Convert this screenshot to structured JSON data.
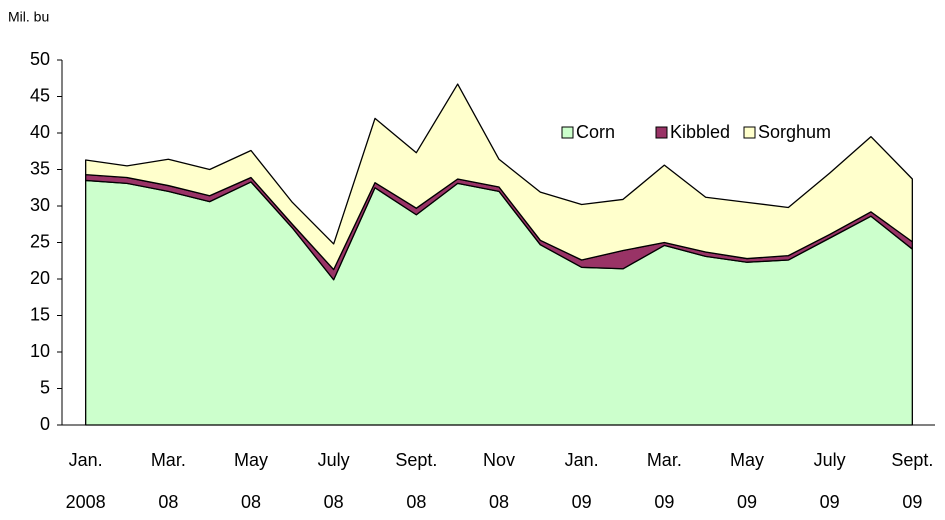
{
  "chart_data": {
    "type": "stacked_area",
    "y_axis_label": "Mil. bu",
    "categories": [
      "Jan.",
      null,
      "Mar.",
      null,
      "May",
      null,
      "July",
      null,
      "Sept.",
      null,
      "Nov",
      null,
      "Jan.",
      null,
      "Mar.",
      null,
      "May",
      null,
      "July",
      null,
      "Sept."
    ],
    "category_years": [
      "2008",
      null,
      "08",
      null,
      "08",
      null,
      "08",
      null,
      "08",
      null,
      "08",
      null,
      "09",
      null,
      "09",
      null,
      "09",
      null,
      "09",
      null,
      "09"
    ],
    "series": [
      {
        "name": "Corn",
        "color": "#ccffcc",
        "values": [
          33.5,
          33.1,
          32.0,
          30.6,
          33.3,
          27.0,
          19.9,
          32.5,
          28.8,
          33.1,
          32.0,
          24.7,
          21.6,
          21.4,
          24.6,
          23.1,
          22.3,
          22.6,
          25.6,
          28.6,
          24.1
        ]
      },
      {
        "name": "Kibbled",
        "color": "#993366",
        "values": [
          0.8,
          0.8,
          0.8,
          0.8,
          0.6,
          0.5,
          1.4,
          0.7,
          0.9,
          0.6,
          0.6,
          0.6,
          1.0,
          2.5,
          0.4,
          0.6,
          0.5,
          0.6,
          0.5,
          0.6,
          1.0
        ]
      },
      {
        "name": "Sorghum",
        "color": "#ffffcc",
        "values": [
          2.0,
          1.6,
          3.6,
          3.6,
          3.7,
          3.0,
          3.5,
          8.8,
          7.6,
          13.0,
          3.8,
          6.6,
          7.6,
          7.0,
          10.6,
          7.5,
          7.7,
          6.6,
          8.4,
          10.3,
          8.6
        ]
      }
    ],
    "ylim": [
      0,
      50
    ],
    "yticks": [
      0,
      5,
      10,
      15,
      20,
      25,
      30,
      35,
      40,
      45,
      50
    ],
    "grid": false,
    "legend": "top-right"
  }
}
